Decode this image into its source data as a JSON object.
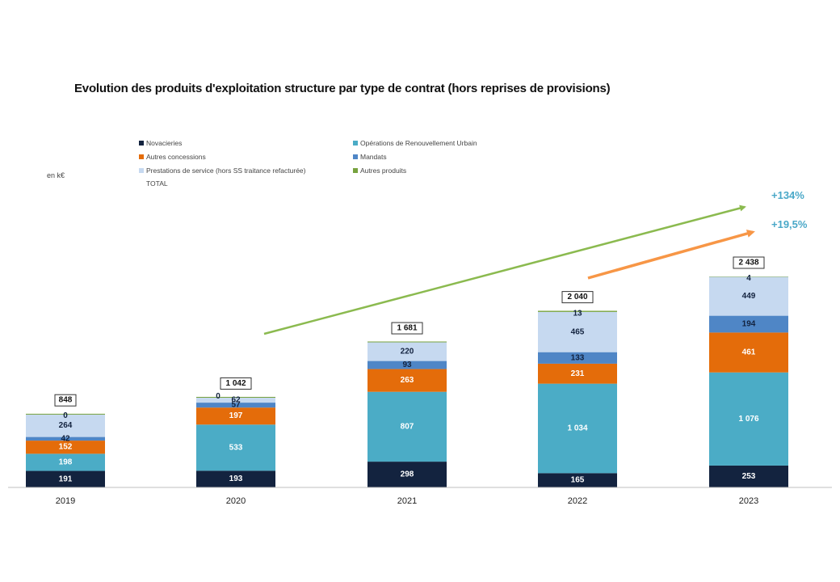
{
  "chart_data": {
    "type": "bar",
    "stacked": true,
    "title": "Evolution des produits d'exploitation structure par type de contrat (hors reprises de provisions)",
    "unit_label": "en k€",
    "xlabel": "",
    "ylabel": "",
    "ylim": [
      0,
      2600
    ],
    "grid": false,
    "legend_position": "top",
    "categories": [
      "2019",
      "2020",
      "2021",
      "2022",
      "2023"
    ],
    "series": [
      {
        "name": "Novacieries",
        "color": "#13233f",
        "label_color": "#ffffff",
        "values": [
          191,
          193,
          298,
          165,
          253
        ]
      },
      {
        "name": "Opérations de Renouvellement Urbain",
        "color": "#4bacc6",
        "label_color": "#ffffff",
        "values": [
          198,
          533,
          807,
          1034,
          1076
        ]
      },
      {
        "name": "Autres concessions",
        "color": "#e46c0a",
        "label_color": "#ffffff",
        "values": [
          152,
          197,
          263,
          231,
          461
        ]
      },
      {
        "name": "Mandats",
        "color": "#4f86c6",
        "label_color": "#13233f",
        "values": [
          42,
          57,
          93,
          133,
          194
        ]
      },
      {
        "name": "Prestations de service (hors SS traitance refacturée)",
        "color": "#c6d9f0",
        "label_color": "#13233f",
        "values": [
          264,
          62,
          220,
          465,
          449
        ]
      },
      {
        "name": "Autres produits",
        "color": "#77a23e",
        "label_color": "#13233f",
        "values": [
          0,
          0,
          0,
          13,
          4
        ]
      }
    ],
    "value_labels": [
      [
        "191",
        "198",
        "152",
        "42",
        "264",
        "0"
      ],
      [
        "193",
        "533",
        "197",
        "57",
        "62",
        "0"
      ],
      [
        "298",
        "807",
        "263",
        "93",
        "220",
        ""
      ],
      [
        "165",
        "1 034",
        "231",
        "133",
        "465",
        "13"
      ],
      [
        "253",
        "1 076",
        "461",
        "194",
        "449",
        "4"
      ]
    ],
    "totals": {
      "name": "TOTAL",
      "values": [
        848,
        1042,
        1681,
        2040,
        2438
      ],
      "labels": [
        "848",
        "1 042",
        "1 681",
        "2 040",
        "2 438"
      ]
    },
    "annotations": [
      {
        "text": "+134%",
        "type": "trend-arrow",
        "color": "#8bba4f",
        "from_category": "2020",
        "to_category": "2023"
      },
      {
        "text": "+19,5%",
        "type": "trend-arrow",
        "color": "#f79646",
        "from_category": "2022",
        "to_category": "2023"
      }
    ]
  },
  "legend": [
    {
      "label": "Novacieries",
      "color": "#13233f"
    },
    {
      "label": "Opérations de Renouvellement Urbain",
      "color": "#4bacc6"
    },
    {
      "label": "Autres concessions",
      "color": "#e46c0a"
    },
    {
      "label": "Mandats",
      "color": "#4f86c6"
    },
    {
      "label": "Prestations de service (hors SS traitance refacturée)",
      "color": "#c6d9f0"
    },
    {
      "label": "Autres produits",
      "color": "#77a23e"
    },
    {
      "label": "TOTAL",
      "color": ""
    }
  ]
}
